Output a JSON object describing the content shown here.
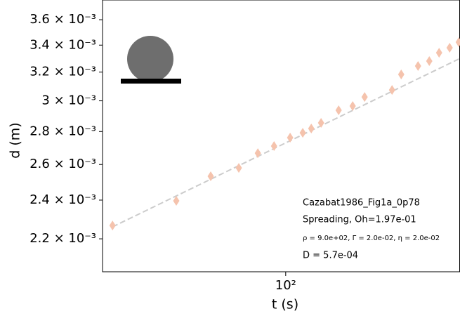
{
  "chart_data": {
    "type": "scatter",
    "xlabel": "t (s)",
    "ylabel": "d (m)",
    "xscale": "log",
    "yscale": "log",
    "xlim": [
      22.3,
      417
    ],
    "ylim": [
      0.002043,
      0.003763
    ],
    "xticks": [
      {
        "value": 100,
        "label": "10²"
      }
    ],
    "yticks": [
      {
        "value": 0.0022,
        "label": "2.2 × 10⁻³"
      },
      {
        "value": 0.0024,
        "label": "2.4 × 10⁻³"
      },
      {
        "value": 0.0026,
        "label": "2.6 × 10⁻³"
      },
      {
        "value": 0.0028,
        "label": "2.8 × 10⁻³"
      },
      {
        "value": 0.003,
        "label": "3 × 10⁻³"
      },
      {
        "value": 0.0032,
        "label": "3.2 × 10⁻³"
      },
      {
        "value": 0.0034,
        "label": "3.4 × 10⁻³"
      },
      {
        "value": 0.0036,
        "label": "3.6 × 10⁻³"
      }
    ],
    "color": "#f5c3ad",
    "x": [
      24.2,
      40.8,
      54.1,
      68.1,
      79.6,
      90.9,
      103.7,
      115.0,
      123.3,
      133.6,
      154.3,
      173.1,
      190.9,
      239,
      257.6,
      295.7,
      324.2,
      351.4,
      383.1,
      412.8
    ],
    "values": [
      0.002267,
      0.002396,
      0.002532,
      0.00258,
      0.002667,
      0.00271,
      0.002762,
      0.002792,
      0.002819,
      0.002855,
      0.002937,
      0.002965,
      0.003026,
      0.003074,
      0.003183,
      0.003244,
      0.00328,
      0.003342,
      0.00338,
      0.003423
    ],
    "fit": {
      "x": [
        24.2,
        417
      ],
      "values": [
        0.00226,
        0.0033
      ],
      "color": "#cccccc"
    },
    "annotations": [
      "Cazabat1986_Fig1a_0p78",
      "Spreading, Oh=1.97e-01",
      "ρ = 9.0e+02, Γ = 2.0e-02, η = 2.0e-02",
      "D = 5.7e-04"
    ]
  }
}
